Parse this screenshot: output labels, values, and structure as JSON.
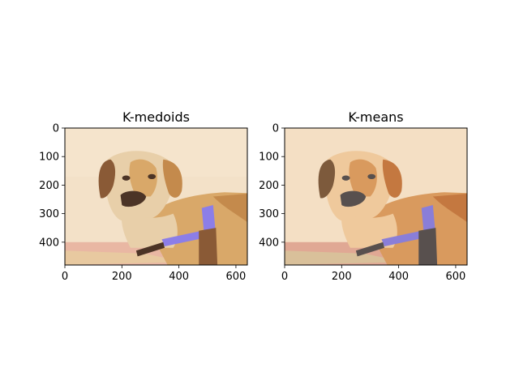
{
  "chart_data": [
    {
      "type": "image",
      "title": "K-medoids",
      "xlabel": "",
      "ylabel": "",
      "xlim": [
        0,
        640
      ],
      "ylim": [
        480,
        0
      ],
      "xticks": [
        0,
        200,
        400,
        600
      ],
      "yticks": [
        0,
        100,
        200,
        300,
        400
      ],
      "image": "posterized photo of a golden dog wearing a purple harness, K-medoids color quantization",
      "palette": [
        "#f3e1c8",
        "#e8cfa9",
        "#d9a869",
        "#c48a4c",
        "#8a5a36",
        "#4c3426",
        "#8c7ee8",
        "#e7b6a2"
      ]
    },
    {
      "type": "image",
      "title": "K-means",
      "xlabel": "",
      "ylabel": "",
      "xlim": [
        0,
        640
      ],
      "ylim": [
        480,
        0
      ],
      "xticks": [
        0,
        200,
        400,
        600
      ],
      "yticks": [
        0,
        100,
        200,
        300,
        400
      ],
      "image": "posterized photo of a golden dog wearing a purple harness, K-means color quantization",
      "palette": [
        "#f4dfc4",
        "#efc99c",
        "#d99a5e",
        "#c47840",
        "#7d5a3c",
        "#58504e",
        "#8a7ed8",
        "#e0a894"
      ]
    }
  ]
}
